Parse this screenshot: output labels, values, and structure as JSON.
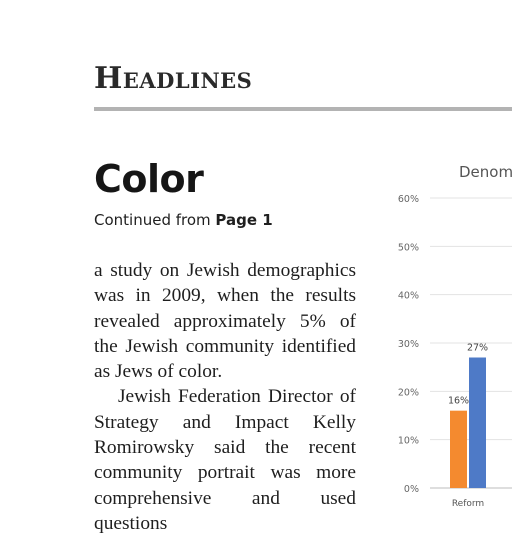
{
  "section": {
    "title": "Headlines"
  },
  "article": {
    "headline": "Color",
    "continued_prefix": "Continued from ",
    "continued_page": "Page 1",
    "paragraphs": [
      "a study on Jewish demographics was in 2009, when the results revealed approximately 5% of the Jewish community identified as Jews of color.",
      "Jewish Federation Director of Strategy and Impact Kelly Romirowsky said the recent community portrait was more comprehensive and used questions"
    ]
  },
  "chart_data": {
    "type": "bar",
    "title": "Denom",
    "categories": [
      "Reform"
    ],
    "series": [
      {
        "values": [
          16
        ],
        "color": "#f48a2f"
      },
      {
        "values": [
          27
        ],
        "color": "#4e7ac7"
      }
    ],
    "data_labels": [
      "16%",
      "27%"
    ],
    "y_ticks": [
      "0%",
      "10%",
      "20%",
      "30%",
      "40%",
      "50%",
      "60%"
    ],
    "ylim": [
      0,
      60
    ],
    "grid": true
  }
}
